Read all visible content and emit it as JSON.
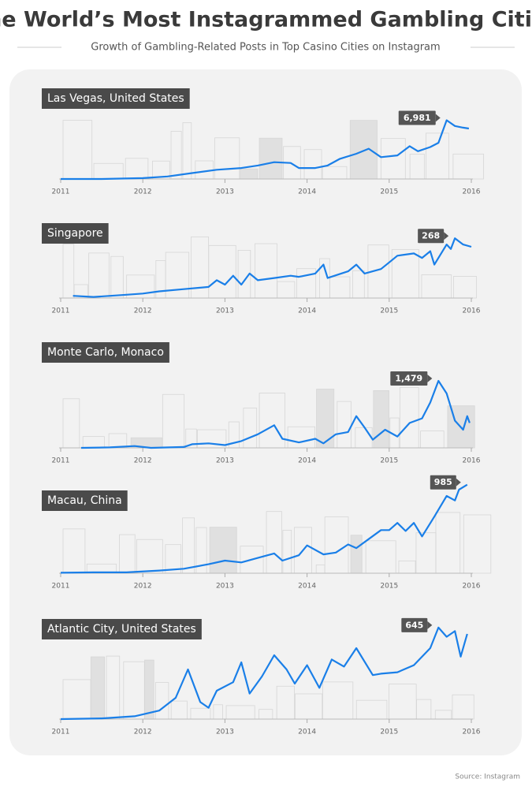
{
  "title": "The World’s Most Instagrammed Gambling Cities",
  "subtitle": "Growth of Gambling-Related Posts in Top Casino Cities on Instagram",
  "source": "Source: Instagram",
  "chart_data": [
    {
      "type": "line",
      "title": "Las Vegas, United States",
      "color": "#1a7fe8",
      "xlim": [
        2011,
        2016
      ],
      "xticks": [
        2011,
        2012,
        2013,
        2014,
        2015,
        2016
      ],
      "ylim": [
        0,
        7500
      ],
      "x": [
        2011.0,
        2011.5,
        2012.0,
        2012.3,
        2012.6,
        2012.9,
        2013.2,
        2013.4,
        2013.6,
        2013.8,
        2013.9,
        2014.1,
        2014.25,
        2014.4,
        2014.6,
        2014.75,
        2014.9,
        2015.1,
        2015.25,
        2015.35,
        2015.5,
        2015.6,
        2015.7,
        2015.8,
        2015.9,
        2015.97
      ],
      "values": [
        0,
        0,
        100,
        300,
        700,
        1100,
        1300,
        1600,
        2000,
        1900,
        1300,
        1300,
        1600,
        2400,
        3000,
        3600,
        2600,
        2800,
        3900,
        3300,
        3800,
        4300,
        6981,
        6300,
        6100,
        6000
      ],
      "value_labels": [
        null,
        null,
        null,
        null,
        null,
        null,
        null,
        null,
        null,
        null,
        null,
        null,
        null,
        null,
        null,
        null,
        null,
        null,
        null,
        null,
        null,
        null,
        "6,981",
        null,
        null,
        null
      ]
    },
    {
      "type": "line",
      "title": "Singapore",
      "color": "#1a7fe8",
      "xlim": [
        2011,
        2016
      ],
      "xticks": [
        2011,
        2012,
        2013,
        2014,
        2015,
        2016
      ],
      "ylim": [
        0,
        290
      ],
      "x": [
        2011.15,
        2011.4,
        2011.8,
        2012.0,
        2012.2,
        2012.5,
        2012.8,
        2012.9,
        2013.0,
        2013.1,
        2013.2,
        2013.3,
        2013.4,
        2013.6,
        2013.8,
        2013.9,
        2014.1,
        2014.2,
        2014.25,
        2014.5,
        2014.6,
        2014.7,
        2014.9,
        2015.0,
        2015.1,
        2015.3,
        2015.4,
        2015.5,
        2015.55,
        2015.7,
        2015.75,
        2015.8,
        2015.9,
        2016.0
      ],
      "values": [
        10,
        5,
        15,
        20,
        30,
        40,
        50,
        80,
        60,
        100,
        60,
        110,
        80,
        90,
        100,
        95,
        110,
        150,
        90,
        120,
        150,
        110,
        130,
        160,
        190,
        200,
        180,
        210,
        150,
        240,
        220,
        268,
        240,
        230
      ],
      "value_labels": [
        null,
        null,
        null,
        null,
        null,
        null,
        null,
        null,
        null,
        null,
        null,
        null,
        null,
        null,
        null,
        null,
        null,
        null,
        null,
        null,
        null,
        null,
        null,
        null,
        null,
        null,
        null,
        null,
        null,
        null,
        null,
        "268",
        null,
        null
      ]
    },
    {
      "type": "line",
      "title": "Monte Carlo, Monaco",
      "color": "#1a7fe8",
      "xlim": [
        2011,
        2016
      ],
      "xticks": [
        2011,
        2012,
        2013,
        2014,
        2015,
        2016
      ],
      "ylim": [
        0,
        1600
      ],
      "x": [
        2011.25,
        2011.6,
        2011.9,
        2012.1,
        2012.5,
        2012.6,
        2012.8,
        2013.0,
        2013.2,
        2013.4,
        2013.6,
        2013.7,
        2013.9,
        2014.1,
        2014.2,
        2014.35,
        2014.5,
        2014.6,
        2014.7,
        2014.8,
        2014.95,
        2015.1,
        2015.25,
        2015.4,
        2015.5,
        2015.6,
        2015.7,
        2015.8,
        2015.9,
        2015.95,
        2015.98
      ],
      "values": [
        0,
        10,
        40,
        0,
        20,
        80,
        100,
        60,
        150,
        300,
        500,
        200,
        120,
        200,
        100,
        300,
        350,
        700,
        450,
        180,
        400,
        250,
        550,
        650,
        1000,
        1479,
        1200,
        600,
        400,
        700,
        550
      ],
      "value_labels": [
        null,
        null,
        null,
        null,
        null,
        null,
        null,
        null,
        null,
        null,
        null,
        null,
        null,
        null,
        null,
        null,
        null,
        null,
        null,
        null,
        null,
        null,
        null,
        null,
        null,
        "1,479",
        null,
        null,
        null,
        null,
        null
      ]
    },
    {
      "type": "line",
      "title": "Macau, China",
      "color": "#1a7fe8",
      "xlim": [
        2011,
        2016
      ],
      "xticks": [
        2011,
        2012,
        2013,
        2014,
        2015,
        2016
      ],
      "ylim": [
        0,
        1000
      ],
      "x": [
        2011.0,
        2011.4,
        2011.8,
        2012.2,
        2012.5,
        2012.8,
        2013.0,
        2013.2,
        2013.4,
        2013.6,
        2013.7,
        2013.9,
        2014.0,
        2014.2,
        2014.35,
        2014.5,
        2014.6,
        2014.75,
        2014.9,
        2015.0,
        2015.1,
        2015.2,
        2015.3,
        2015.4,
        2015.55,
        2015.7,
        2015.8,
        2015.85,
        2015.95
      ],
      "values": [
        5,
        10,
        10,
        30,
        50,
        100,
        140,
        120,
        170,
        220,
        140,
        200,
        310,
        210,
        230,
        320,
        280,
        380,
        480,
        480,
        560,
        470,
        560,
        410,
        630,
        860,
        810,
        930,
        985
      ],
      "value_labels": [
        null,
        null,
        null,
        null,
        null,
        null,
        null,
        null,
        null,
        null,
        null,
        null,
        null,
        null,
        null,
        null,
        null,
        null,
        null,
        null,
        null,
        null,
        null,
        null,
        null,
        null,
        null,
        null,
        "985"
      ]
    },
    {
      "type": "line",
      "title": "Atlantic City, United States",
      "color": "#1a7fe8",
      "xlim": [
        2011,
        2016
      ],
      "xticks": [
        2011,
        2012,
        2013,
        2014,
        2015,
        2016
      ],
      "ylim": [
        0,
        700
      ],
      "x": [
        2011.0,
        2011.5,
        2011.9,
        2012.2,
        2012.4,
        2012.55,
        2012.7,
        2012.8,
        2012.9,
        2013.1,
        2013.2,
        2013.3,
        2013.45,
        2013.6,
        2013.75,
        2013.85,
        2014.0,
        2014.15,
        2014.3,
        2014.45,
        2014.6,
        2014.8,
        2014.9,
        2015.1,
        2015.3,
        2015.5,
        2015.6,
        2015.7,
        2015.8,
        2015.87,
        2015.95
      ],
      "values": [
        0,
        5,
        20,
        60,
        150,
        350,
        120,
        80,
        200,
        260,
        400,
        180,
        300,
        450,
        350,
        250,
        380,
        220,
        420,
        370,
        500,
        310,
        320,
        330,
        380,
        500,
        645,
        580,
        620,
        440,
        600
      ],
      "value_labels": [
        null,
        null,
        null,
        null,
        null,
        null,
        null,
        null,
        null,
        null,
        null,
        null,
        null,
        null,
        null,
        null,
        null,
        null,
        null,
        null,
        null,
        null,
        null,
        null,
        null,
        null,
        "645",
        null,
        null,
        null,
        null
      ]
    }
  ]
}
